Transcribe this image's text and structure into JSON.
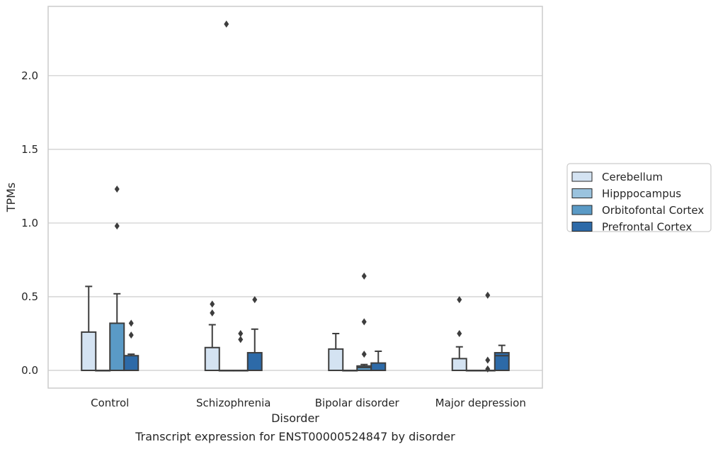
{
  "chart_data": {
    "type": "box",
    "xlabel": "Disorder",
    "ylabel": "TPMs",
    "caption": "Transcript expression for ENST00000524847 by disorder",
    "categories": [
      "Control",
      "Schizophrenia",
      "Bipolar disorder",
      "Major depression"
    ],
    "ylim": [
      -0.12,
      2.47
    ],
    "yticks": [
      0.0,
      0.5,
      1.0,
      1.5,
      2.0
    ],
    "ytick_labels": [
      "0.0",
      "0.5",
      "1.0",
      "1.5",
      "2.0"
    ],
    "grid": true,
    "legend_position": "right",
    "series": [
      {
        "name": "Cerebellum",
        "color": "#d4e3f2",
        "boxes": [
          {
            "whisker_low": 0,
            "q1": 0,
            "median": 0,
            "q3": 0.26,
            "whisker_high": 0.57,
            "outliers": []
          },
          {
            "whisker_low": 0,
            "q1": 0,
            "median": 0,
            "q3": 0.155,
            "whisker_high": 0.31,
            "outliers": [
              0.39,
              0.45
            ]
          },
          {
            "whisker_low": 0,
            "q1": 0,
            "median": 0,
            "q3": 0.145,
            "whisker_high": 0.25,
            "outliers": []
          },
          {
            "whisker_low": 0,
            "q1": 0,
            "median": 0,
            "q3": 0.08,
            "whisker_high": 0.16,
            "outliers": [
              0.25,
              0.48
            ]
          }
        ]
      },
      {
        "name": "Hipppocampus",
        "color": "#9ac3de",
        "boxes": [
          {
            "whisker_low": 0,
            "q1": 0,
            "median": 0,
            "q3": 0,
            "whisker_high": 0,
            "outliers": []
          },
          {
            "whisker_low": 0,
            "q1": 0,
            "median": 0,
            "q3": 0,
            "whisker_high": 0,
            "outliers": [
              2.35
            ]
          },
          {
            "whisker_low": 0,
            "q1": 0,
            "median": 0,
            "q3": 0,
            "whisker_high": 0,
            "outliers": []
          },
          {
            "whisker_low": 0,
            "q1": 0,
            "median": 0,
            "q3": 0,
            "whisker_high": 0,
            "outliers": []
          }
        ]
      },
      {
        "name": "Orbitofontal Cortex",
        "color": "#5a9ac6",
        "boxes": [
          {
            "whisker_low": 0,
            "q1": 0,
            "median": 0,
            "q3": 0.32,
            "whisker_high": 0.52,
            "outliers": [
              0.98,
              1.23
            ]
          },
          {
            "whisker_low": 0,
            "q1": 0,
            "median": 0,
            "q3": 0,
            "whisker_high": 0,
            "outliers": [
              0.21,
              0.25
            ]
          },
          {
            "whisker_low": 0,
            "q1": 0,
            "median": 0.02,
            "q3": 0.03,
            "whisker_high": 0.04,
            "outliers": [
              0.11,
              0.33,
              0.64
            ]
          },
          {
            "whisker_low": 0,
            "q1": 0,
            "median": 0,
            "q3": 0,
            "whisker_high": 0,
            "outliers": [
              0.01,
              0.07,
              0.51
            ]
          }
        ]
      },
      {
        "name": "Prefrontal Cortex",
        "color": "#2d6aa8",
        "boxes": [
          {
            "whisker_low": 0,
            "q1": 0,
            "median": 0,
            "q3": 0.1,
            "whisker_high": 0.11,
            "outliers": [
              0.24,
              0.32
            ]
          },
          {
            "whisker_low": 0,
            "q1": 0,
            "median": 0,
            "q3": 0.12,
            "whisker_high": 0.28,
            "outliers": [
              0.48
            ]
          },
          {
            "whisker_low": 0,
            "q1": 0,
            "median": 0,
            "q3": 0.05,
            "whisker_high": 0.13,
            "outliers": []
          },
          {
            "whisker_low": 0,
            "q1": 0,
            "median": 0.1,
            "q3": 0.12,
            "whisker_high": 0.17,
            "outliers": []
          }
        ]
      }
    ]
  }
}
